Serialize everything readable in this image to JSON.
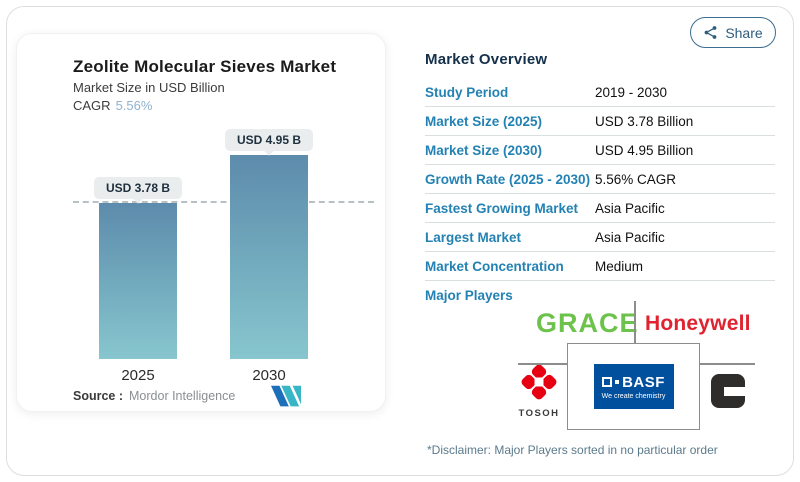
{
  "share": {
    "label": "Share"
  },
  "chart": {
    "title": "Zeolite Molecular Sieves Market",
    "subtitle": "Market Size in USD Billion",
    "cagr_label": "CAGR",
    "cagr_value": "5.56%",
    "source_label": "Source :",
    "source_value": "Mordor Intelligence",
    "bars": [
      {
        "year": "2025",
        "label": "USD 3.78 B"
      },
      {
        "year": "2030",
        "label": "USD 4.95 B"
      }
    ]
  },
  "chart_data": {
    "type": "bar",
    "title": "Zeolite Molecular Sieves Market",
    "subtitle": "Market Size in USD Billion",
    "categories": [
      "2025",
      "2030"
    ],
    "values": [
      3.78,
      4.95
    ],
    "data_labels": [
      "USD 3.78 B",
      "USD 4.95 B"
    ],
    "cagr": "5.56%",
    "ylabel": "USD Billion",
    "ylim": [
      0,
      5.2
    ],
    "grid": false,
    "dashed_reference_line": 3.78,
    "source": "Mordor Intelligence"
  },
  "overview": {
    "title": "Market Overview",
    "rows": [
      {
        "label": "Study Period",
        "value": "2019 - 2030"
      },
      {
        "label": "Market Size (2025)",
        "value": "USD 3.78 Billion"
      },
      {
        "label": "Market Size (2030)",
        "value": "USD 4.95 Billion"
      },
      {
        "label": "Growth Rate (2025 - 2030)",
        "value": "5.56% CAGR"
      },
      {
        "label": "Fastest Growing Market",
        "value": "Asia Pacific"
      },
      {
        "label": "Largest Market",
        "value": "Asia Pacific"
      },
      {
        "label": "Market Concentration",
        "value": "Medium"
      },
      {
        "label": "Major Players",
        "value": ""
      }
    ],
    "players": {
      "grace": "GRACE",
      "honeywell": "Honeywell",
      "tosoh": "TOSOH",
      "basf": "BASF",
      "basf_tagline": "We create chemistry",
      "cummins": "Cummins"
    },
    "disclaimer": "*Disclaimer: Major Players sorted in no particular order"
  },
  "colors": {
    "bar_gradient_top": "#5d8bac",
    "bar_gradient_bottom": "#87c6ce",
    "row_label_blue": "#2382b3",
    "heading_navy": "#14304a",
    "cagr_value_blue": "#8fb3cc",
    "grace_green": "#6cc24a",
    "honeywell_red": "#e02330",
    "basf_blue": "#01509e",
    "tosoh_red": "#e60012",
    "cummins_black": "#2e2d2c",
    "share_teal": "#2f5d7c"
  }
}
